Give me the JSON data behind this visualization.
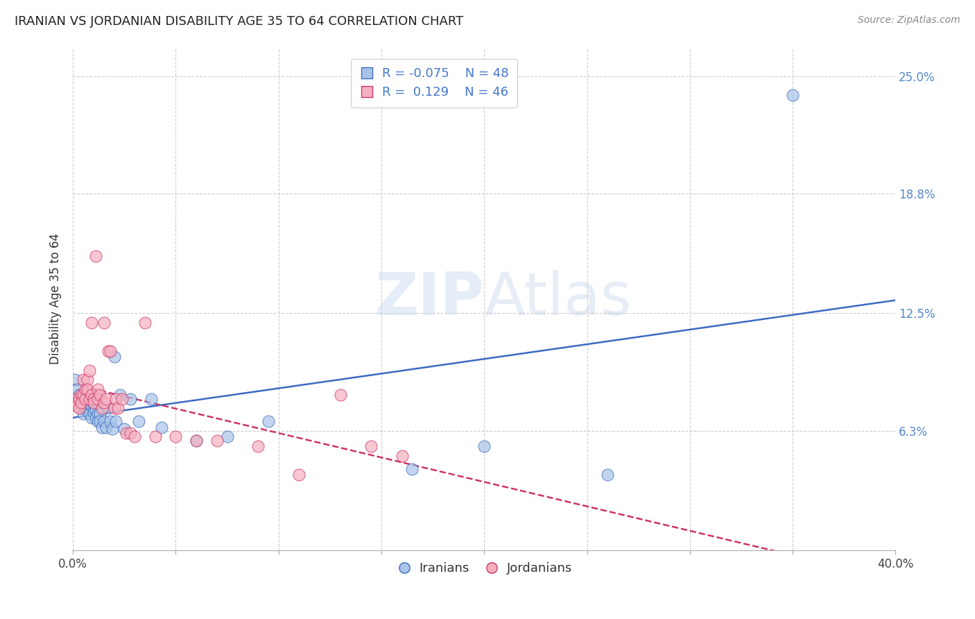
{
  "title": "IRANIAN VS JORDANIAN DISABILITY AGE 35 TO 64 CORRELATION CHART",
  "source": "Source: ZipAtlas.com",
  "ylabel": "Disability Age 35 to 64",
  "xlim": [
    0.0,
    0.4
  ],
  "ylim": [
    0.0,
    0.265
  ],
  "xticks": [
    0.0,
    0.05,
    0.1,
    0.15,
    0.2,
    0.25,
    0.3,
    0.35,
    0.4
  ],
  "xticklabels": [
    "0.0%",
    "",
    "",
    "",
    "",
    "",
    "",
    "",
    "40.0%"
  ],
  "ytick_positions": [
    0.063,
    0.125,
    0.188,
    0.25
  ],
  "yticklabels": [
    "6.3%",
    "12.5%",
    "18.8%",
    "25.0%"
  ],
  "legend_R_iranians": "-0.075",
  "legend_N_iranians": "48",
  "legend_R_jordanians": " 0.129",
  "legend_N_jordanians": "46",
  "color_iranians": "#a8c4e8",
  "color_jordanians": "#f4b0c0",
  "trendline_iranians_color": "#3a6bbf",
  "trendline_jordanians_color": "#cc3366",
  "watermark": "ZIPAtlas",
  "iranians_x": [
    0.001,
    0.002,
    0.003,
    0.003,
    0.004,
    0.004,
    0.005,
    0.005,
    0.006,
    0.006,
    0.006,
    0.007,
    0.007,
    0.007,
    0.008,
    0.008,
    0.008,
    0.009,
    0.009,
    0.01,
    0.01,
    0.011,
    0.011,
    0.012,
    0.012,
    0.013,
    0.013,
    0.014,
    0.015,
    0.016,
    0.017,
    0.018,
    0.019,
    0.02,
    0.021,
    0.023,
    0.025,
    0.028,
    0.032,
    0.038,
    0.043,
    0.06,
    0.075,
    0.095,
    0.165,
    0.2,
    0.26,
    0.35
  ],
  "iranians_y": [
    0.09,
    0.085,
    0.082,
    0.08,
    0.078,
    0.075,
    0.078,
    0.072,
    0.08,
    0.078,
    0.076,
    0.082,
    0.076,
    0.074,
    0.08,
    0.075,
    0.072,
    0.076,
    0.07,
    0.075,
    0.073,
    0.074,
    0.07,
    0.072,
    0.068,
    0.072,
    0.068,
    0.065,
    0.068,
    0.065,
    0.075,
    0.068,
    0.064,
    0.102,
    0.068,
    0.082,
    0.064,
    0.08,
    0.068,
    0.08,
    0.065,
    0.058,
    0.06,
    0.068,
    0.043,
    0.055,
    0.04,
    0.24
  ],
  "jordanians_x": [
    0.001,
    0.002,
    0.002,
    0.003,
    0.003,
    0.004,
    0.004,
    0.005,
    0.005,
    0.006,
    0.006,
    0.007,
    0.007,
    0.008,
    0.008,
    0.009,
    0.009,
    0.01,
    0.01,
    0.011,
    0.012,
    0.012,
    0.013,
    0.014,
    0.015,
    0.015,
    0.016,
    0.017,
    0.018,
    0.02,
    0.021,
    0.022,
    0.024,
    0.026,
    0.028,
    0.03,
    0.035,
    0.04,
    0.05,
    0.06,
    0.07,
    0.09,
    0.11,
    0.13,
    0.145,
    0.16
  ],
  "jordanians_y": [
    0.08,
    0.078,
    0.076,
    0.08,
    0.075,
    0.082,
    0.078,
    0.09,
    0.082,
    0.085,
    0.08,
    0.09,
    0.085,
    0.095,
    0.08,
    0.12,
    0.082,
    0.08,
    0.078,
    0.155,
    0.085,
    0.08,
    0.082,
    0.075,
    0.078,
    0.12,
    0.08,
    0.105,
    0.105,
    0.075,
    0.08,
    0.075,
    0.08,
    0.062,
    0.062,
    0.06,
    0.12,
    0.06,
    0.06,
    0.058,
    0.058,
    0.055,
    0.04,
    0.082,
    0.055,
    0.05
  ]
}
